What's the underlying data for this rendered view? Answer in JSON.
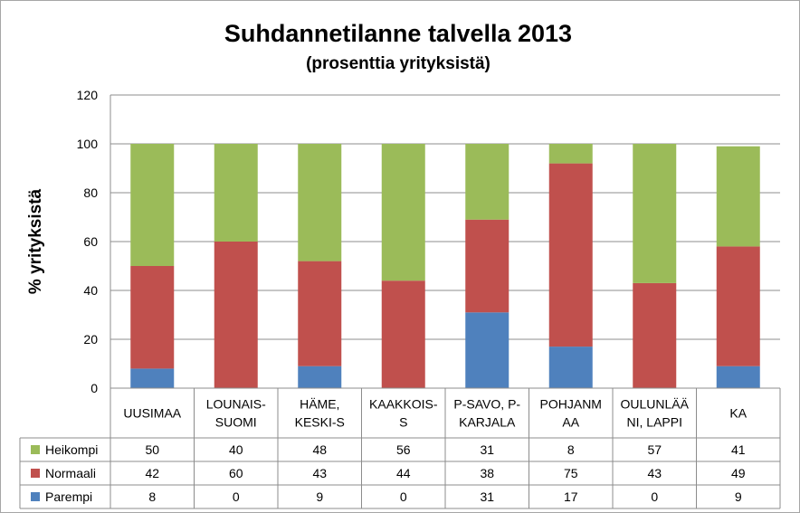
{
  "chart_data": {
    "type": "bar",
    "stacked": true,
    "title": "Suhdannetilanne talvella 2013",
    "subtitle": "(prosenttia yrityksistä)",
    "ylabel": "% yrityksistä",
    "ylim": [
      0,
      120
    ],
    "yticks": [
      0,
      20,
      40,
      60,
      80,
      100,
      120
    ],
    "grid": true,
    "categories": [
      [
        "UUSIMAA"
      ],
      [
        "LOUNAIS-",
        "SUOMI"
      ],
      [
        "HÄME,",
        "KESKI-S"
      ],
      [
        "KAAKKOIS-",
        "S"
      ],
      [
        "P-SAVO, P-",
        "KARJALA"
      ],
      [
        "POHJANM",
        "AA"
      ],
      [
        "OULUNLÄÄ",
        "NI, LAPPI"
      ],
      [
        "KA"
      ]
    ],
    "series": [
      {
        "name": "Heikompi",
        "color": "#9bbb59",
        "values": [
          50,
          40,
          48,
          56,
          31,
          8,
          57,
          41
        ]
      },
      {
        "name": "Normaali",
        "color": "#c0504d",
        "values": [
          42,
          60,
          43,
          44,
          38,
          75,
          43,
          49
        ]
      },
      {
        "name": "Parempi",
        "color": "#4f81bd",
        "values": [
          8,
          0,
          9,
          0,
          31,
          17,
          0,
          9
        ]
      }
    ]
  }
}
